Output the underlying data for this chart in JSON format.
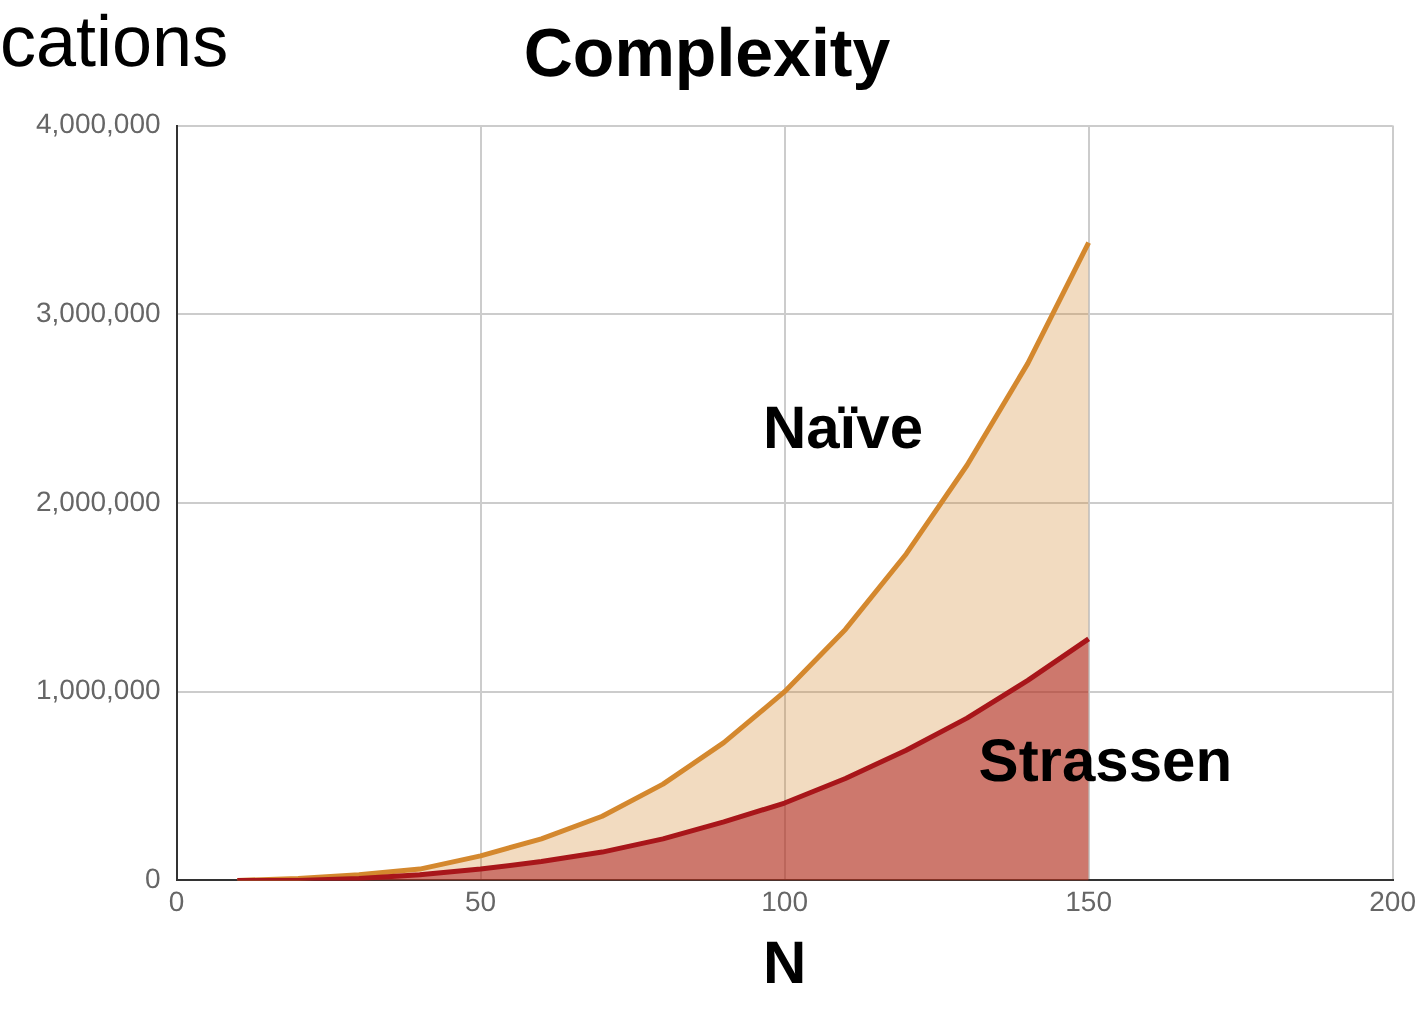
{
  "chart_data": {
    "type": "area",
    "title": "Complexity",
    "xlabel": "N",
    "annotations": [
      "cations"
    ],
    "xlim": [
      0,
      200
    ],
    "xticks": [
      0,
      50,
      100,
      150,
      200
    ],
    "ylim": [
      0,
      4000000
    ],
    "yticks": [
      {
        "value": 0,
        "label": "0"
      },
      {
        "value": 1000000,
        "label": "1,000,000"
      },
      {
        "value": 2000000,
        "label": "2,000,000"
      },
      {
        "value": 3000000,
        "label": "3,000,000"
      },
      {
        "value": 4000000,
        "label": "4,000,000"
      }
    ],
    "grid": true,
    "legend": false,
    "marker": "none",
    "x": [
      10,
      20,
      30,
      40,
      50,
      60,
      70,
      80,
      90,
      100,
      110,
      120,
      130,
      140,
      150
    ],
    "series": [
      {
        "name": "Naïve",
        "color": "#d4882e",
        "values": [
          0,
          10000,
          30000,
          60000,
          130000,
          220000,
          340000,
          510000,
          730000,
          1000000,
          1330000,
          1730000,
          2200000,
          2740000,
          3380000
        ]
      },
      {
        "name": "Strassen",
        "color": "#a8161a",
        "values": [
          0,
          0,
          10000,
          30000,
          60000,
          100000,
          150000,
          220000,
          310000,
          410000,
          540000,
          690000,
          860000,
          1060000,
          1280000
        ]
      }
    ]
  }
}
